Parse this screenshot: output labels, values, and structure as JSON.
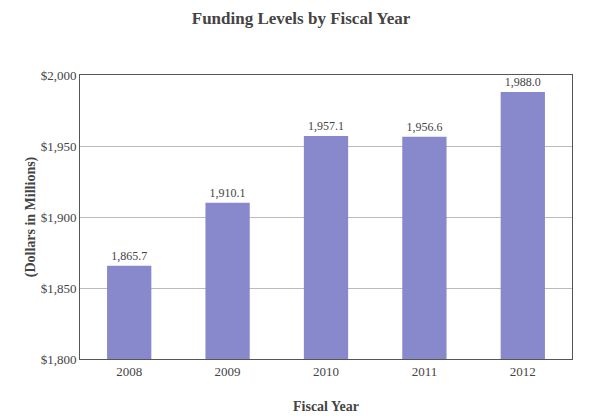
{
  "chart_data": {
    "type": "bar",
    "title": "Funding Levels by Fiscal Year",
    "xlabel": "Fiscal Year",
    "ylabel": "(Dollars in Millions)",
    "categories": [
      "2008",
      "2009",
      "2010",
      "2011",
      "2012"
    ],
    "values": [
      1865.7,
      1910.1,
      1957.1,
      1956.6,
      1988.0
    ],
    "value_labels": [
      "1,865.7",
      "1,910.1",
      "1,957.1",
      "1,956.6",
      "1,988.0"
    ],
    "color": "#8888cc",
    "ylim": [
      1800,
      2000
    ],
    "yticks": [
      {
        "value": 1800,
        "label": "$1,800"
      },
      {
        "value": 1850,
        "label": "$1,850"
      },
      {
        "value": 1900,
        "label": "$1,900"
      },
      {
        "value": 1950,
        "label": "$1,950"
      },
      {
        "value": 2000,
        "label": "$2,000"
      }
    ],
    "grid": true,
    "data_labels": true
  }
}
